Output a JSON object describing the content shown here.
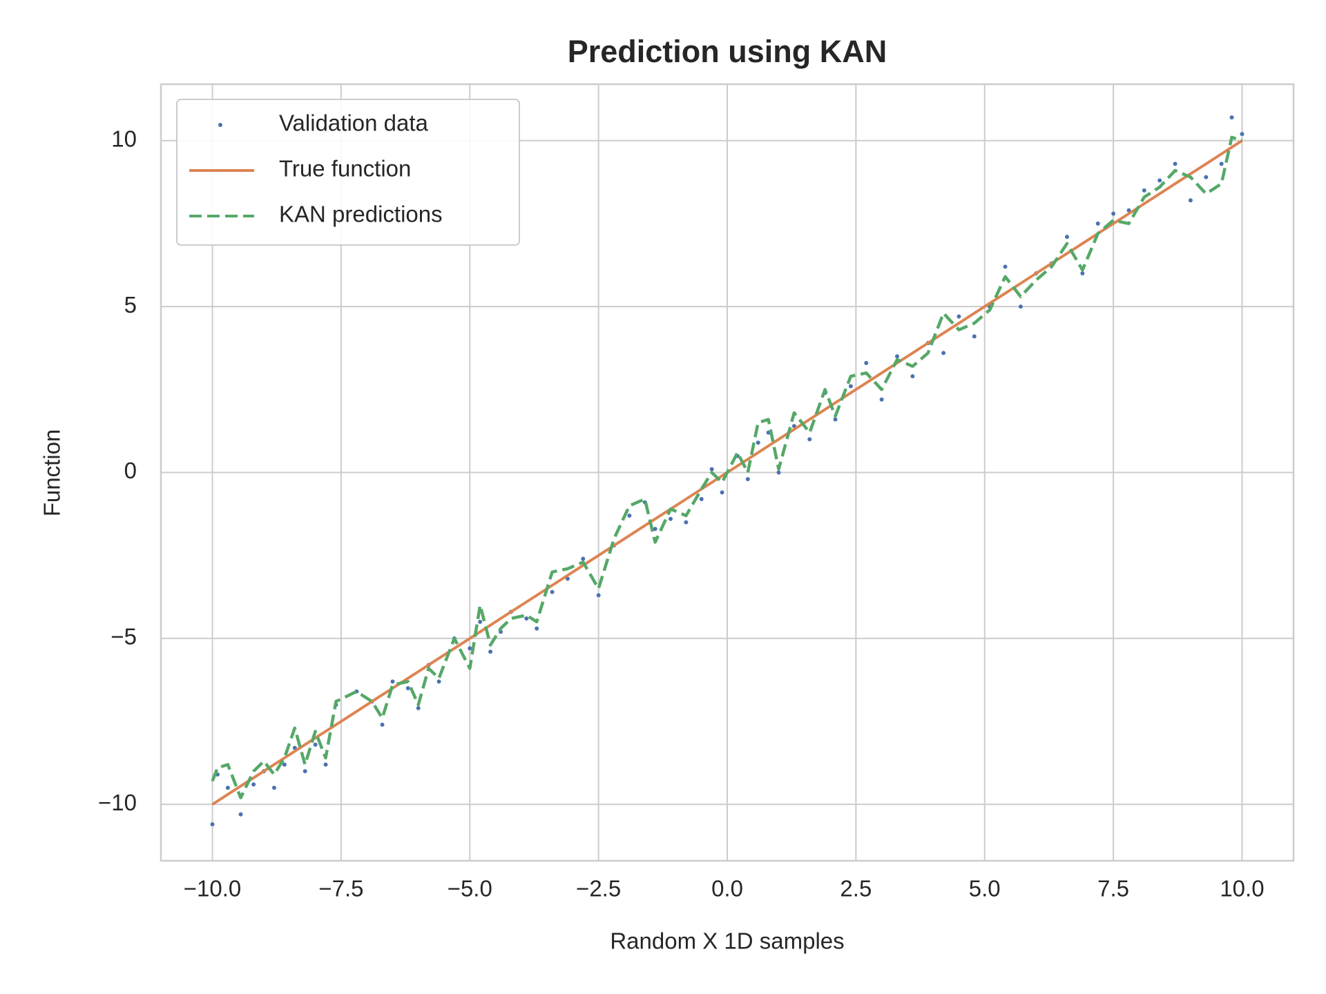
{
  "chart_data": {
    "type": "line",
    "title": "Prediction using KAN",
    "x_label": "Random X 1D samples",
    "y_label": "Function",
    "x": [
      -10,
      -9.9,
      -9.7,
      -9.45,
      -9.2,
      -9.0,
      -8.8,
      -8.6,
      -8.4,
      -8.2,
      -8.0,
      -7.8,
      -7.6,
      -7.2,
      -6.9,
      -6.7,
      -6.5,
      -6.2,
      -6.0,
      -5.8,
      -5.6,
      -5.3,
      -5.0,
      -4.8,
      -4.6,
      -4.4,
      -4.2,
      -3.9,
      -3.7,
      -3.4,
      -3.1,
      -2.8,
      -2.5,
      -2.2,
      -1.9,
      -1.6,
      -1.4,
      -1.1,
      -0.8,
      -0.5,
      -0.3,
      -0.1,
      0.2,
      0.4,
      0.6,
      0.8,
      1.0,
      1.3,
      1.6,
      1.9,
      2.1,
      2.4,
      2.7,
      3.0,
      3.3,
      3.6,
      3.9,
      4.2,
      4.5,
      4.8,
      5.1,
      5.4,
      5.7,
      6.0,
      6.3,
      6.6,
      6.9,
      7.2,
      7.5,
      7.8,
      8.1,
      8.4,
      8.7,
      9.0,
      9.3,
      9.6,
      9.8,
      10.0
    ],
    "series": [
      {
        "name": "Validation data",
        "color": "#4c72b0",
        "linestyle": "none",
        "values": [
          -10.6,
          -9.1,
          -9.5,
          -10.3,
          -9.4,
          -9.0,
          -9.5,
          -8.8,
          -8.3,
          -9.0,
          -8.2,
          -8.8,
          -7.0,
          -6.6,
          -6.9,
          -7.6,
          -6.3,
          -6.5,
          -7.1,
          -5.8,
          -6.3,
          -5.0,
          -5.3,
          -4.5,
          -5.4,
          -4.8,
          -4.2,
          -4.4,
          -4.7,
          -3.6,
          -3.2,
          -2.6,
          -3.7,
          -2.2,
          -1.3,
          -0.9,
          -1.7,
          -1.4,
          -1.5,
          -0.8,
          0.1,
          -0.6,
          0.5,
          -0.2,
          0.9,
          1.2,
          0.0,
          1.4,
          1.0,
          2.4,
          1.6,
          2.6,
          3.3,
          2.2,
          3.5,
          2.9,
          3.9,
          3.6,
          4.7,
          4.1,
          5.0,
          6.2,
          5.0,
          6.0,
          6.3,
          7.1,
          6.0,
          7.5,
          7.8,
          7.9,
          8.5,
          8.8,
          9.3,
          8.2,
          8.9,
          9.3,
          10.7,
          10.2
        ]
      },
      {
        "name": "True function",
        "color": "#dd8452",
        "linestyle": "solid",
        "values": [
          -10,
          -9.9,
          -9.7,
          -9.45,
          -9.2,
          -9.0,
          -8.8,
          -8.6,
          -8.4,
          -8.2,
          -8.0,
          -7.8,
          -7.6,
          -7.2,
          -6.9,
          -6.7,
          -6.5,
          -6.2,
          -6.0,
          -5.8,
          -5.6,
          -5.3,
          -5.0,
          -4.8,
          -4.6,
          -4.4,
          -4.2,
          -3.9,
          -3.7,
          -3.4,
          -3.1,
          -2.8,
          -2.5,
          -2.2,
          -1.9,
          -1.6,
          -1.4,
          -1.1,
          -0.8,
          -0.5,
          -0.3,
          -0.1,
          0.2,
          0.4,
          0.6,
          0.8,
          1.0,
          1.3,
          1.6,
          1.9,
          2.1,
          2.4,
          2.7,
          3.0,
          3.3,
          3.6,
          3.9,
          4.2,
          4.5,
          4.8,
          5.1,
          5.4,
          5.7,
          6.0,
          6.3,
          6.6,
          6.9,
          7.2,
          7.5,
          7.8,
          8.1,
          8.4,
          8.7,
          9.0,
          9.3,
          9.6,
          9.8,
          10.0
        ]
      },
      {
        "name": "KAN predictions",
        "color": "#55a868",
        "linestyle": "dashed",
        "values": [
          -9.3,
          -8.9,
          -8.8,
          -9.8,
          -9.0,
          -8.7,
          -9.1,
          -8.6,
          -7.7,
          -8.8,
          -7.8,
          -8.6,
          -6.9,
          -6.6,
          -6.9,
          -7.4,
          -6.4,
          -6.3,
          -7.0,
          -5.9,
          -6.2,
          -5.0,
          -5.9,
          -4.0,
          -5.2,
          -4.7,
          -4.4,
          -4.3,
          -4.5,
          -3.0,
          -2.9,
          -2.7,
          -3.5,
          -2.0,
          -1.0,
          -0.8,
          -2.1,
          -1.1,
          -1.3,
          -0.5,
          0.0,
          -0.3,
          0.6,
          0.0,
          1.5,
          1.6,
          0.1,
          1.8,
          1.2,
          2.5,
          1.7,
          2.9,
          3.0,
          2.5,
          3.4,
          3.2,
          3.6,
          4.8,
          4.3,
          4.5,
          4.9,
          5.9,
          5.3,
          5.8,
          6.2,
          6.9,
          6.1,
          7.2,
          7.6,
          7.5,
          8.3,
          8.6,
          9.1,
          8.9,
          8.4,
          8.7,
          10.1,
          10.0
        ]
      }
    ],
    "xlim": [
      -11,
      11
    ],
    "ylim": [
      -11.7,
      11.7
    ],
    "xticks": [
      {
        "value": -10,
        "label": "−10.0"
      },
      {
        "value": -7.5,
        "label": "−7.5"
      },
      {
        "value": -5,
        "label": "−5.0"
      },
      {
        "value": -2.5,
        "label": "−2.5"
      },
      {
        "value": 0,
        "label": "0.0"
      },
      {
        "value": 2.5,
        "label": "2.5"
      },
      {
        "value": 5,
        "label": "5.0"
      },
      {
        "value": 7.5,
        "label": "7.5"
      },
      {
        "value": 10,
        "label": "10.0"
      }
    ],
    "yticks": [
      {
        "value": -10,
        "label": "−10"
      },
      {
        "value": -5,
        "label": "−5"
      },
      0,
      5,
      10
    ],
    "grid": true,
    "legend": "upper left"
  }
}
